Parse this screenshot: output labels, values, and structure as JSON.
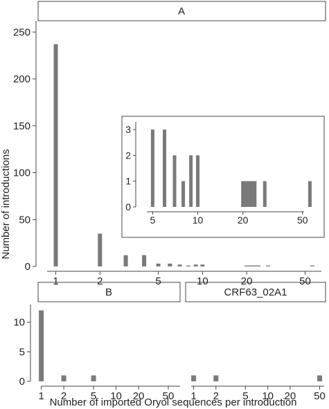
{
  "style": {
    "bar_color": "#7a7a7a",
    "axis_color": "#444444",
    "strip_fill": "#ffffff",
    "strip_stroke": "#444444"
  },
  "axes": {
    "ylabel": "Number of introductions",
    "xlabel": "Number of imported Oryol sequences per introduction"
  },
  "chart_data": [
    {
      "id": "A",
      "type": "bar",
      "title": "A",
      "x_scale": "log10",
      "xlim": [
        0.8,
        66
      ],
      "ylim": [
        0,
        262
      ],
      "x_ticks": [
        1,
        2,
        5,
        10,
        20,
        50
      ],
      "y_ticks": [
        0,
        50,
        100,
        150,
        200,
        250
      ],
      "x": [
        1,
        2,
        3,
        4,
        5,
        6,
        7,
        8,
        9,
        10,
        20,
        21,
        22,
        23,
        24,
        28,
        56
      ],
      "values": [
        237,
        35,
        12,
        12,
        3,
        3,
        2,
        1,
        2,
        2,
        1,
        1,
        1,
        1,
        1,
        1,
        1
      ]
    },
    {
      "id": "A-inset",
      "type": "bar",
      "title": "",
      "x_scale": "log10",
      "xlim": [
        4.2,
        64
      ],
      "ylim": [
        0,
        3.3
      ],
      "x_ticks": [
        5,
        10,
        20,
        50
      ],
      "y_ticks": [
        0,
        1,
        2,
        3
      ],
      "x": [
        5,
        6,
        7,
        8,
        9,
        10,
        20,
        21,
        22,
        23,
        24,
        28,
        56
      ],
      "values": [
        3,
        3,
        2,
        1,
        2,
        2,
        1,
        1,
        1,
        1,
        1,
        1,
        1
      ]
    },
    {
      "id": "B",
      "type": "bar",
      "title": "B",
      "x_scale": "log10",
      "xlim": [
        0.85,
        75
      ],
      "ylim": [
        0,
        13
      ],
      "x_ticks": [
        1,
        2,
        5,
        10,
        20,
        50
      ],
      "y_ticks": [
        0,
        5,
        10
      ],
      "x": [
        1,
        2,
        5
      ],
      "values": [
        12,
        1,
        1
      ]
    },
    {
      "id": "CRF63_02A1",
      "type": "bar",
      "title": "CRF63_02A1",
      "x_scale": "log10",
      "xlim": [
        0.85,
        60
      ],
      "ylim": [
        0,
        13
      ],
      "x_ticks": [
        1,
        2,
        5,
        10,
        20,
        50
      ],
      "y_ticks": [],
      "x": [
        1,
        2,
        50
      ],
      "values": [
        1,
        1,
        1
      ]
    }
  ]
}
